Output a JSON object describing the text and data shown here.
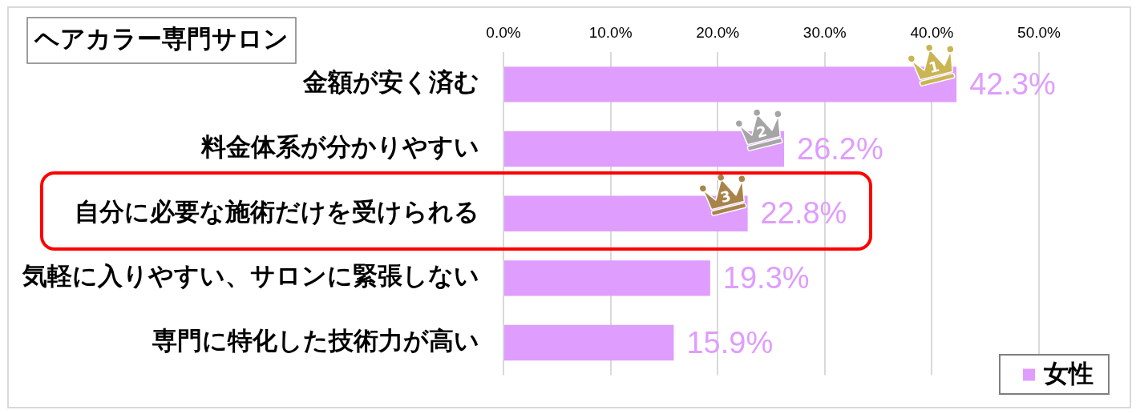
{
  "chart_data": {
    "type": "bar",
    "orientation": "horizontal",
    "title": "ヘアカラー専門サロン",
    "categories": [
      "金額が安く済む",
      "料金体系が分かりやすい",
      "自分に必要な施術だけを受けられる",
      "気軽に入りやすい、サロンに緊張しない",
      "専門に特化した技術力が高い"
    ],
    "series": [
      {
        "name": "女性",
        "color": "#df9dfd",
        "values": [
          42.3,
          26.2,
          22.8,
          19.3,
          15.9
        ],
        "value_labels": [
          "42.3%",
          "26.2%",
          "22.8%",
          "19.3%",
          "15.9%"
        ]
      }
    ],
    "xlim": [
      0,
      50
    ],
    "xticks": [
      {
        "value": 0,
        "label": "0.0%"
      },
      {
        "value": 10,
        "label": "10.0%"
      },
      {
        "value": 20,
        "label": "20.0%"
      },
      {
        "value": 30,
        "label": "30.0%"
      },
      {
        "value": 40,
        "label": "40.0%"
      },
      {
        "value": 50,
        "label": "50.0%"
      }
    ],
    "grid": "x",
    "legend": "bottom right",
    "annotations": [
      {
        "text": "1",
        "x": 42.3,
        "y": "金額が安く済む"
      },
      {
        "text": "2",
        "x": 26.2,
        "y": "料金体系が分かりやすい"
      },
      {
        "text": "3",
        "x": 22.8,
        "y": "自分に必要な施術だけを受けられる"
      }
    ]
  }
}
